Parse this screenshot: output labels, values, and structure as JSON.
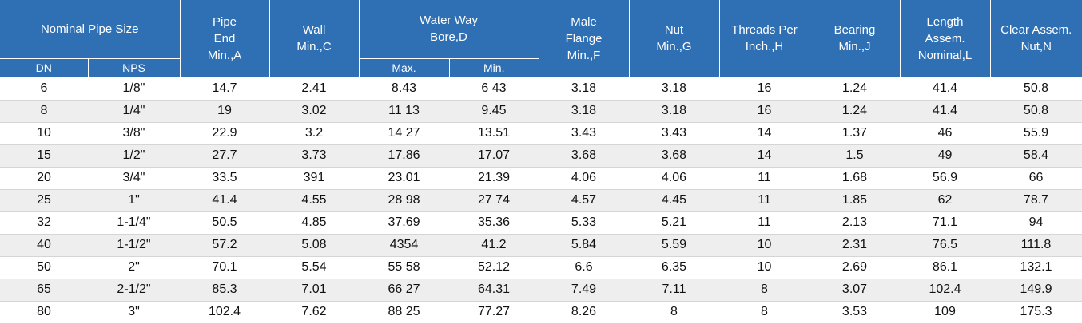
{
  "headers": {
    "nominal_pipe_size": "Nominal Pipe Size",
    "dn": "DN",
    "nps": "NPS",
    "pipe_end": [
      "Pipe",
      "End",
      "Min.,A"
    ],
    "wall": [
      "Wall",
      "Min.,C"
    ],
    "water_way": [
      "Water Way",
      "Bore,D"
    ],
    "max": "Max.",
    "min": "Min.",
    "male_flange": [
      "Male",
      "Flange",
      "Min.,F"
    ],
    "nut": [
      "Nut",
      "Min.,G"
    ],
    "threads": [
      "Threads Per",
      "Inch.,H"
    ],
    "bearing": [
      "Bearing",
      "Min.,J"
    ],
    "length": [
      "Length",
      "Assem.",
      "Nominal,L"
    ],
    "clear": [
      "Clear Assem.",
      "Nut,N"
    ]
  },
  "rows": [
    [
      "6",
      "1/8\"",
      "14.7",
      "2.41",
      "8.43",
      "6 43",
      "3.18",
      "3.18",
      "16",
      "1.24",
      "41.4",
      "50.8"
    ],
    [
      "8",
      "1/4\"",
      "19",
      "3.02",
      "11 13",
      "9.45",
      "3.18",
      "3.18",
      "16",
      "1.24",
      "41.4",
      "50.8"
    ],
    [
      "10",
      "3/8\"",
      "22.9",
      "3.2",
      "14 27",
      "13.51",
      "3.43",
      "3.43",
      "14",
      "1.37",
      "46",
      "55.9"
    ],
    [
      "15",
      "1/2\"",
      "27.7",
      "3.73",
      "17.86",
      "17.07",
      "3.68",
      "3.68",
      "14",
      "1.5",
      "49",
      "58.4"
    ],
    [
      "20",
      "3/4\"",
      "33.5",
      "391",
      "23.01",
      "21.39",
      "4.06",
      "4.06",
      "11",
      "1.68",
      "56.9",
      "66"
    ],
    [
      "25",
      "1\"",
      "41.4",
      "4.55",
      "28 98",
      "27 74",
      "4.57",
      "4.45",
      "11",
      "1.85",
      "62",
      "78.7"
    ],
    [
      "32",
      "1-1/4\"",
      "50.5",
      "4.85",
      "37.69",
      "35.36",
      "5.33",
      "5.21",
      "11",
      "2.13",
      "71.1",
      "94"
    ],
    [
      "40",
      "1-1/2\"",
      "57.2",
      "5.08",
      "4354",
      "41.2",
      "5.84",
      "5.59",
      "10",
      "2.31",
      "76.5",
      "111.8"
    ],
    [
      "50",
      "2\"",
      "70.1",
      "5.54",
      "55 58",
      "52.12",
      "6.6",
      "6.35",
      "10",
      "2.69",
      "86.1",
      "132.1"
    ],
    [
      "65",
      "2-1/2\"",
      "85.3",
      "7.01",
      "66 27",
      "64.31",
      "7.49",
      "7.11",
      "8",
      "3.07",
      "102.4",
      "149.9"
    ],
    [
      "80",
      "3\"",
      "102.4",
      "7.62",
      "88 25",
      "77.27",
      "8.26",
      "8",
      "8",
      "3.53",
      "109",
      "175.3"
    ]
  ]
}
